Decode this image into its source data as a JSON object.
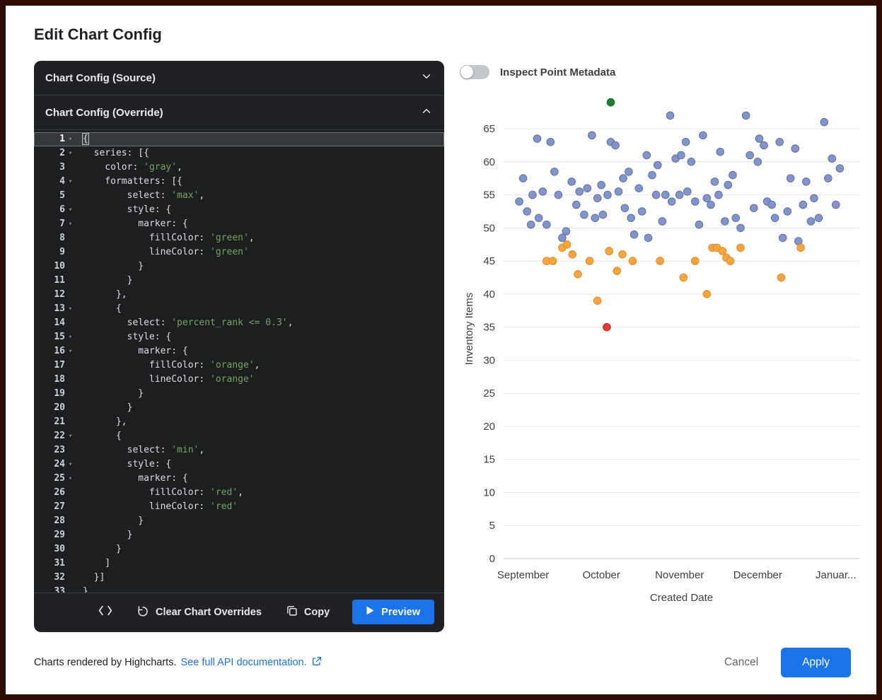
{
  "dialog": {
    "title": "Edit Chart Config",
    "footer": {
      "highcharts_text": "Charts rendered by Highcharts.",
      "api_link": "See full API documentation.",
      "cancel_label": "Cancel",
      "apply_label": "Apply"
    }
  },
  "editor": {
    "source_header": "Chart Config (Source)",
    "override_header": "Chart Config (Override)",
    "actions": {
      "clear_label": "Clear Chart Overrides",
      "copy_label": "Copy",
      "preview_label": "Preview"
    },
    "lines": [
      {
        "n": 1,
        "text": "{",
        "fold": true,
        "active": true,
        "bracket": true
      },
      {
        "n": 2,
        "text": "  series: [{",
        "fold": true
      },
      {
        "n": 3,
        "text": "    color: 'gray',"
      },
      {
        "n": 4,
        "text": "    formatters: [{",
        "fold": true
      },
      {
        "n": 5,
        "text": "        select: 'max',"
      },
      {
        "n": 6,
        "text": "        style: {",
        "fold": true
      },
      {
        "n": 7,
        "text": "          marker: {",
        "fold": true
      },
      {
        "n": 8,
        "text": "            fillColor: 'green',"
      },
      {
        "n": 9,
        "text": "            lineColor: 'green'"
      },
      {
        "n": 10,
        "text": "          }"
      },
      {
        "n": 11,
        "text": "        }"
      },
      {
        "n": 12,
        "text": "      },"
      },
      {
        "n": 13,
        "text": "      {",
        "fold": true
      },
      {
        "n": 14,
        "text": "        select: 'percent_rank <= 0.3',"
      },
      {
        "n": 15,
        "text": "        style: {",
        "fold": true
      },
      {
        "n": 16,
        "text": "          marker: {",
        "fold": true
      },
      {
        "n": 17,
        "text": "            fillColor: 'orange',"
      },
      {
        "n": 18,
        "text": "            lineColor: 'orange'"
      },
      {
        "n": 19,
        "text": "          }"
      },
      {
        "n": 20,
        "text": "        }"
      },
      {
        "n": 21,
        "text": "      },"
      },
      {
        "n": 22,
        "text": "      {",
        "fold": true
      },
      {
        "n": 23,
        "text": "        select: 'min',"
      },
      {
        "n": 24,
        "text": "        style: {",
        "fold": true
      },
      {
        "n": 25,
        "text": "          marker: {",
        "fold": true
      },
      {
        "n": 26,
        "text": "            fillColor: 'red',"
      },
      {
        "n": 27,
        "text": "            lineColor: 'red'"
      },
      {
        "n": 28,
        "text": "          }"
      },
      {
        "n": 29,
        "text": "        }"
      },
      {
        "n": 30,
        "text": "      }"
      },
      {
        "n": 31,
        "text": "    ]"
      },
      {
        "n": 32,
        "text": "  }]"
      },
      {
        "n": 33,
        "text": "}"
      }
    ]
  },
  "inspect_toggle": {
    "label": "Inspect Point Metadata",
    "on": false
  },
  "chart_data": {
    "type": "scatter",
    "xlabel": "Created Date",
    "ylabel": "Inventory Items",
    "x_tick_labels": [
      "September",
      "October",
      "November",
      "December",
      "Januar..."
    ],
    "y_ticks": [
      0,
      5,
      10,
      15,
      20,
      25,
      30,
      35,
      40,
      45,
      50,
      55,
      60,
      65
    ],
    "xlim": [
      -0.25,
      4.3
    ],
    "ylim": [
      0,
      69.5
    ],
    "grid": true,
    "legend": false,
    "series": [
      {
        "key": "base",
        "name": "inventory-items",
        "color": "#8094cd",
        "line_color": "#64719b",
        "points": [
          [
            -0.05,
            54
          ],
          [
            0,
            57.5
          ],
          [
            0.05,
            52.5
          ],
          [
            0.1,
            50.5
          ],
          [
            0.12,
            55
          ],
          [
            0.18,
            63.5
          ],
          [
            0.2,
            51.5
          ],
          [
            0.25,
            55.5
          ],
          [
            0.3,
            50.5
          ],
          [
            0.35,
            63
          ],
          [
            0.4,
            58.5
          ],
          [
            0.45,
            55
          ],
          [
            0.5,
            48.5
          ],
          [
            0.55,
            49.5
          ],
          [
            0.62,
            57
          ],
          [
            0.68,
            53.5
          ],
          [
            0.72,
            55.5
          ],
          [
            0.78,
            52
          ],
          [
            0.82,
            56
          ],
          [
            0.88,
            64
          ],
          [
            0.92,
            51.5
          ],
          [
            0.95,
            54.5
          ],
          [
            1,
            56.5
          ],
          [
            1.02,
            52
          ],
          [
            1.08,
            55
          ],
          [
            1.12,
            63
          ],
          [
            1.18,
            62.5
          ],
          [
            1.22,
            55.5
          ],
          [
            1.28,
            57.5
          ],
          [
            1.3,
            53
          ],
          [
            1.35,
            58.5
          ],
          [
            1.38,
            51.5
          ],
          [
            1.42,
            49
          ],
          [
            1.48,
            56
          ],
          [
            1.52,
            52.5
          ],
          [
            1.58,
            61
          ],
          [
            1.6,
            48.5
          ],
          [
            1.65,
            58
          ],
          [
            1.7,
            55
          ],
          [
            1.72,
            59.5
          ],
          [
            1.78,
            51
          ],
          [
            1.82,
            55
          ],
          [
            1.88,
            67
          ],
          [
            1.9,
            54
          ],
          [
            1.95,
            60.5
          ],
          [
            2,
            55
          ],
          [
            2.02,
            61
          ],
          [
            2.08,
            63
          ],
          [
            2.1,
            55.5
          ],
          [
            2.15,
            60
          ],
          [
            2.2,
            54
          ],
          [
            2.25,
            50.5
          ],
          [
            2.3,
            64
          ],
          [
            2.35,
            54.5
          ],
          [
            2.4,
            53.5
          ],
          [
            2.45,
            57
          ],
          [
            2.5,
            55
          ],
          [
            2.52,
            61.5
          ],
          [
            2.58,
            51
          ],
          [
            2.62,
            56.5
          ],
          [
            2.68,
            58
          ],
          [
            2.72,
            51.5
          ],
          [
            2.78,
            50
          ],
          [
            2.85,
            67
          ],
          [
            2.9,
            61
          ],
          [
            2.95,
            53
          ],
          [
            3,
            60
          ],
          [
            3.02,
            63.5
          ],
          [
            3.08,
            62.5
          ],
          [
            3.12,
            54
          ],
          [
            3.18,
            53.5
          ],
          [
            3.22,
            51.5
          ],
          [
            3.28,
            63
          ],
          [
            3.32,
            48.5
          ],
          [
            3.38,
            52.5
          ],
          [
            3.42,
            57.5
          ],
          [
            3.48,
            62
          ],
          [
            3.52,
            48
          ],
          [
            3.58,
            53.5
          ],
          [
            3.62,
            57
          ],
          [
            3.68,
            51
          ],
          [
            3.72,
            54.5
          ],
          [
            3.78,
            51.5
          ],
          [
            3.85,
            66
          ],
          [
            3.9,
            57.5
          ],
          [
            3.95,
            60.5
          ],
          [
            4,
            53.5
          ],
          [
            4.05,
            59
          ]
        ]
      },
      {
        "key": "low-percentile",
        "name": "percent_rank <= 0.3",
        "color": "#f9a43f",
        "line_color": "#d98e2b",
        "points": [
          [
            0.3,
            45
          ],
          [
            0.38,
            45
          ],
          [
            0.5,
            47
          ],
          [
            0.56,
            47.5
          ],
          [
            0.63,
            46
          ],
          [
            0.7,
            43
          ],
          [
            0.85,
            45
          ],
          [
            0.95,
            39
          ],
          [
            1.1,
            46.5
          ],
          [
            1.2,
            43.5
          ],
          [
            1.27,
            46
          ],
          [
            1.4,
            45
          ],
          [
            1.75,
            45
          ],
          [
            2.05,
            42.5
          ],
          [
            2.2,
            45
          ],
          [
            2.35,
            40
          ],
          [
            2.42,
            47
          ],
          [
            2.48,
            47
          ],
          [
            2.55,
            46.5
          ],
          [
            2.6,
            45.5
          ],
          [
            2.65,
            45
          ],
          [
            2.78,
            47
          ],
          [
            3.3,
            42.5
          ],
          [
            3.55,
            47
          ]
        ]
      },
      {
        "key": "max",
        "name": "max",
        "color": "#1e7e34",
        "line_color": "#176628",
        "points": [
          [
            1.12,
            69
          ]
        ]
      },
      {
        "key": "min",
        "name": "min",
        "color": "#e23a2e",
        "line_color": "#c02a20",
        "points": [
          [
            1.07,
            35
          ]
        ]
      }
    ]
  },
  "colors": {
    "accent_blue": "#1a73e8",
    "editor_bg": "#202124",
    "code_string_green": "#75a55f",
    "point_blue": "#8094cd",
    "point_orange": "#f9a43f",
    "point_green": "#1e7e34",
    "point_red": "#e23a2e"
  }
}
